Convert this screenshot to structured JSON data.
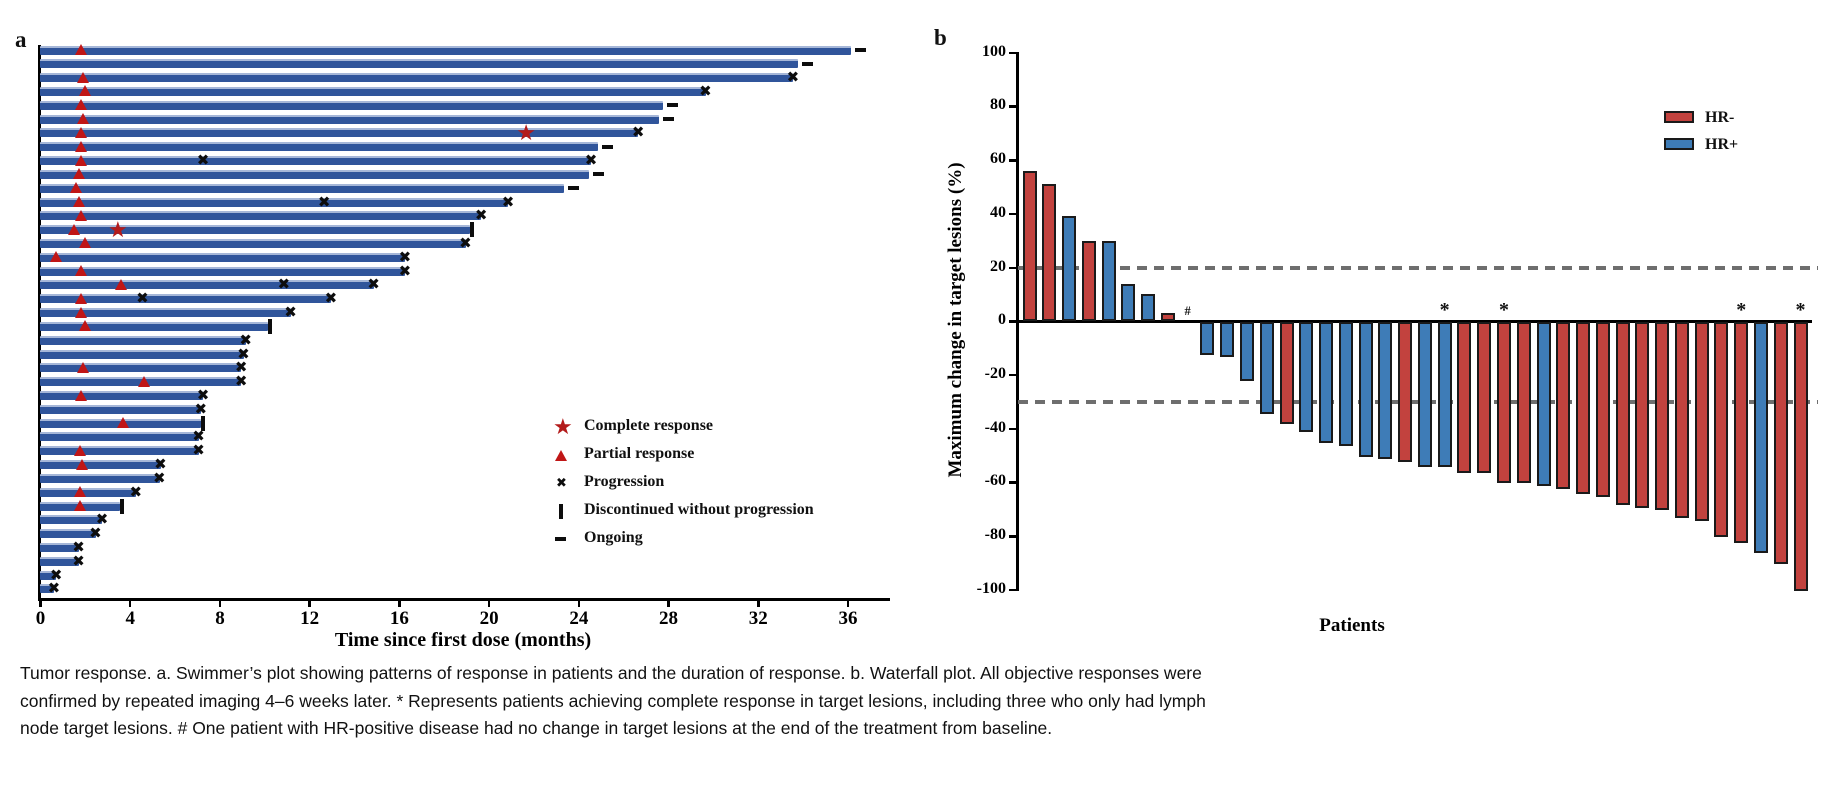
{
  "colors": {
    "swimmer_bar": "#30559B",
    "swimmer_bar_highlight": "#A6B7D8",
    "hr_negative": "#C2423E",
    "hr_positive": "#3E7CB7",
    "marker_red": "#C01616",
    "dashed_reference": "#6e6e6e"
  },
  "panel_a": {
    "label": "a",
    "xlabel": "Time since first dose (months)",
    "legend": [
      {
        "marker": "star",
        "label": "Complete response"
      },
      {
        "marker": "triangle",
        "label": "Partial response"
      },
      {
        "marker": "x",
        "label": "Progression"
      },
      {
        "marker": "bar",
        "label": "Discontinued without progression"
      },
      {
        "marker": "dash",
        "label": "Ongoing"
      }
    ]
  },
  "panel_b": {
    "label": "b",
    "ylabel": "Maximum change in target lesions (%)",
    "xlabel": "Patients",
    "legend": [
      {
        "label": "HR-",
        "group": "hr_negative"
      },
      {
        "label": "HR+",
        "group": "hr_positive"
      }
    ]
  },
  "caption": {
    "lines": [
      "Tumor response. a. Swimmer’s plot showing patterns of response in patients and the duration of response. b. Waterfall plot. All objective responses were",
      "confirmed by repeated imaging 4–6 weeks later. * Represents patients achieving complete response in target lesions, including three who only had lymph",
      "node target lesions. # One patient with HR-positive disease had no change in target lesions at the end of the treatment from baseline."
    ]
  },
  "chart_data": [
    {
      "type": "bar",
      "subtype": "swimmer",
      "title": "a",
      "xlabel": "Time since first dose (months)",
      "xlim": [
        0,
        38
      ],
      "x_ticks": [
        0,
        4,
        8,
        12,
        16,
        20,
        24,
        28,
        32,
        36
      ],
      "grid": false,
      "marker_legend": [
        "Complete response",
        "Partial response",
        "Progression",
        "Discontinued without progression",
        "Ongoing"
      ],
      "patients": [
        {
          "duration": 36.2,
          "end": "ongoing",
          "triangle": 1.8,
          "star": null,
          "mid": []
        },
        {
          "duration": 33.8,
          "end": "ongoing",
          "triangle": null,
          "star": null,
          "mid": []
        },
        {
          "duration": 33.6,
          "end": "progression",
          "triangle": 1.9,
          "star": null,
          "mid": []
        },
        {
          "duration": 29.7,
          "end": "progression",
          "triangle": 2.0,
          "star": null,
          "mid": []
        },
        {
          "duration": 27.8,
          "end": "ongoing",
          "triangle": 1.8,
          "star": null,
          "mid": []
        },
        {
          "duration": 27.6,
          "end": "ongoing",
          "triangle": 1.9,
          "star": null,
          "mid": []
        },
        {
          "duration": 26.7,
          "end": "progression",
          "triangle": 1.8,
          "star": 21.7,
          "mid": []
        },
        {
          "duration": 24.9,
          "end": "ongoing",
          "triangle": 1.8,
          "star": null,
          "mid": []
        },
        {
          "duration": 24.6,
          "end": "progression",
          "triangle": 1.8,
          "star": null,
          "mid": [
            7.3
          ]
        },
        {
          "duration": 24.5,
          "end": "ongoing",
          "triangle": 1.7,
          "star": null,
          "mid": []
        },
        {
          "duration": 23.4,
          "end": "ongoing",
          "triangle": 1.6,
          "star": null,
          "mid": []
        },
        {
          "duration": 20.9,
          "end": "progression",
          "triangle": 1.7,
          "star": null,
          "mid": [
            12.7
          ]
        },
        {
          "duration": 19.7,
          "end": "progression",
          "triangle": 1.8,
          "star": null,
          "mid": []
        },
        {
          "duration": 19.2,
          "end": "discontinued",
          "triangle": 1.5,
          "star": 3.5,
          "mid": []
        },
        {
          "duration": 19.0,
          "end": "progression",
          "triangle": 2.0,
          "star": null,
          "mid": []
        },
        {
          "duration": 16.3,
          "end": "progression",
          "triangle": 0.7,
          "star": null,
          "mid": []
        },
        {
          "duration": 16.3,
          "end": "progression",
          "triangle": 1.8,
          "star": null,
          "mid": []
        },
        {
          "duration": 14.9,
          "end": "progression",
          "triangle": 3.6,
          "star": null,
          "mid": [
            10.9
          ]
        },
        {
          "duration": 13.0,
          "end": "progression",
          "triangle": 1.8,
          "star": null,
          "mid": [
            4.6
          ]
        },
        {
          "duration": 11.2,
          "end": "progression",
          "triangle": 1.8,
          "star": null,
          "mid": []
        },
        {
          "duration": 10.2,
          "end": "discontinued",
          "triangle": 2.0,
          "star": null,
          "mid": []
        },
        {
          "duration": 9.2,
          "end": "progression",
          "triangle": null,
          "star": null,
          "mid": []
        },
        {
          "duration": 9.1,
          "end": "progression",
          "triangle": null,
          "star": null,
          "mid": []
        },
        {
          "duration": 9.0,
          "end": "progression",
          "triangle": 1.9,
          "star": null,
          "mid": []
        },
        {
          "duration": 9.0,
          "end": "progression",
          "triangle": 4.6,
          "star": null,
          "mid": []
        },
        {
          "duration": 7.3,
          "end": "progression",
          "triangle": 1.8,
          "star": null,
          "mid": []
        },
        {
          "duration": 7.2,
          "end": "progression",
          "triangle": null,
          "star": null,
          "mid": []
        },
        {
          "duration": 7.2,
          "end": "discontinued",
          "triangle": 3.7,
          "star": null,
          "mid": []
        },
        {
          "duration": 7.1,
          "end": "progression",
          "triangle": null,
          "star": null,
          "mid": []
        },
        {
          "duration": 7.1,
          "end": "progression",
          "triangle": 1.75,
          "star": null,
          "mid": []
        },
        {
          "duration": 5.4,
          "end": "progression",
          "triangle": 1.85,
          "star": null,
          "mid": []
        },
        {
          "duration": 5.35,
          "end": "progression",
          "triangle": null,
          "star": null,
          "mid": []
        },
        {
          "duration": 4.3,
          "end": "progression",
          "triangle": 1.75,
          "star": null,
          "mid": []
        },
        {
          "duration": 3.6,
          "end": "discontinued",
          "triangle": 1.75,
          "star": null,
          "mid": []
        },
        {
          "duration": 2.8,
          "end": "progression",
          "triangle": null,
          "star": null,
          "mid": []
        },
        {
          "duration": 2.5,
          "end": "progression",
          "triangle": null,
          "star": null,
          "mid": []
        },
        {
          "duration": 1.75,
          "end": "progression",
          "triangle": null,
          "star": null,
          "mid": []
        },
        {
          "duration": 1.75,
          "end": "progression",
          "triangle": null,
          "star": null,
          "mid": []
        },
        {
          "duration": 0.75,
          "end": "progression",
          "triangle": null,
          "star": null,
          "mid": []
        },
        {
          "duration": 0.65,
          "end": "progression",
          "triangle": null,
          "star": null,
          "mid": []
        }
      ]
    },
    {
      "type": "bar",
      "subtype": "waterfall",
      "title": "b",
      "ylabel": "Maximum change in target lesions (%)",
      "xlabel": "Patients",
      "ylim": [
        -100,
        100
      ],
      "y_ticks": [
        100,
        80,
        60,
        40,
        20,
        0,
        -20,
        -40,
        -60,
        -80,
        -100
      ],
      "reference_lines": [
        20,
        -30
      ],
      "legend_position": "top-right",
      "legend": [
        "HR-",
        "HR+"
      ],
      "patients": [
        {
          "value": 56,
          "group": "HR-",
          "flag": null
        },
        {
          "value": 51,
          "group": "HR-",
          "flag": null
        },
        {
          "value": 39,
          "group": "HR+",
          "flag": null
        },
        {
          "value": 30,
          "group": "HR-",
          "flag": null
        },
        {
          "value": 30,
          "group": "HR+",
          "flag": null
        },
        {
          "value": 14,
          "group": "HR+",
          "flag": null
        },
        {
          "value": 10,
          "group": "HR+",
          "flag": null
        },
        {
          "value": 3,
          "group": "HR-",
          "flag": null
        },
        {
          "value": 0,
          "group": "HR+",
          "flag": "#"
        },
        {
          "value": -12,
          "group": "HR+",
          "flag": null
        },
        {
          "value": -13,
          "group": "HR+",
          "flag": null
        },
        {
          "value": -22,
          "group": "HR+",
          "flag": null
        },
        {
          "value": -34,
          "group": "HR+",
          "flag": null
        },
        {
          "value": -38,
          "group": "HR-",
          "flag": null
        },
        {
          "value": -41,
          "group": "HR+",
          "flag": null
        },
        {
          "value": -45,
          "group": "HR+",
          "flag": null
        },
        {
          "value": -46,
          "group": "HR+",
          "flag": null
        },
        {
          "value": -50,
          "group": "HR+",
          "flag": null
        },
        {
          "value": -51,
          "group": "HR+",
          "flag": null
        },
        {
          "value": -52,
          "group": "HR-",
          "flag": null
        },
        {
          "value": -54,
          "group": "HR+",
          "flag": null
        },
        {
          "value": -54,
          "group": "HR+",
          "flag": "*"
        },
        {
          "value": -56,
          "group": "HR-",
          "flag": null
        },
        {
          "value": -56,
          "group": "HR-",
          "flag": null
        },
        {
          "value": -60,
          "group": "HR-",
          "flag": "*"
        },
        {
          "value": -60,
          "group": "HR-",
          "flag": null
        },
        {
          "value": -61,
          "group": "HR+",
          "flag": null
        },
        {
          "value": -62,
          "group": "HR-",
          "flag": null
        },
        {
          "value": -64,
          "group": "HR-",
          "flag": null
        },
        {
          "value": -65,
          "group": "HR-",
          "flag": null
        },
        {
          "value": -68,
          "group": "HR-",
          "flag": null
        },
        {
          "value": -69,
          "group": "HR-",
          "flag": null
        },
        {
          "value": -70,
          "group": "HR-",
          "flag": null
        },
        {
          "value": -73,
          "group": "HR-",
          "flag": null
        },
        {
          "value": -74,
          "group": "HR-",
          "flag": null
        },
        {
          "value": -80,
          "group": "HR-",
          "flag": null
        },
        {
          "value": -82,
          "group": "HR-",
          "flag": "*"
        },
        {
          "value": -86,
          "group": "HR+",
          "flag": null
        },
        {
          "value": -90,
          "group": "HR-",
          "flag": null
        },
        {
          "value": -100,
          "group": "HR-",
          "flag": "*"
        }
      ]
    }
  ]
}
